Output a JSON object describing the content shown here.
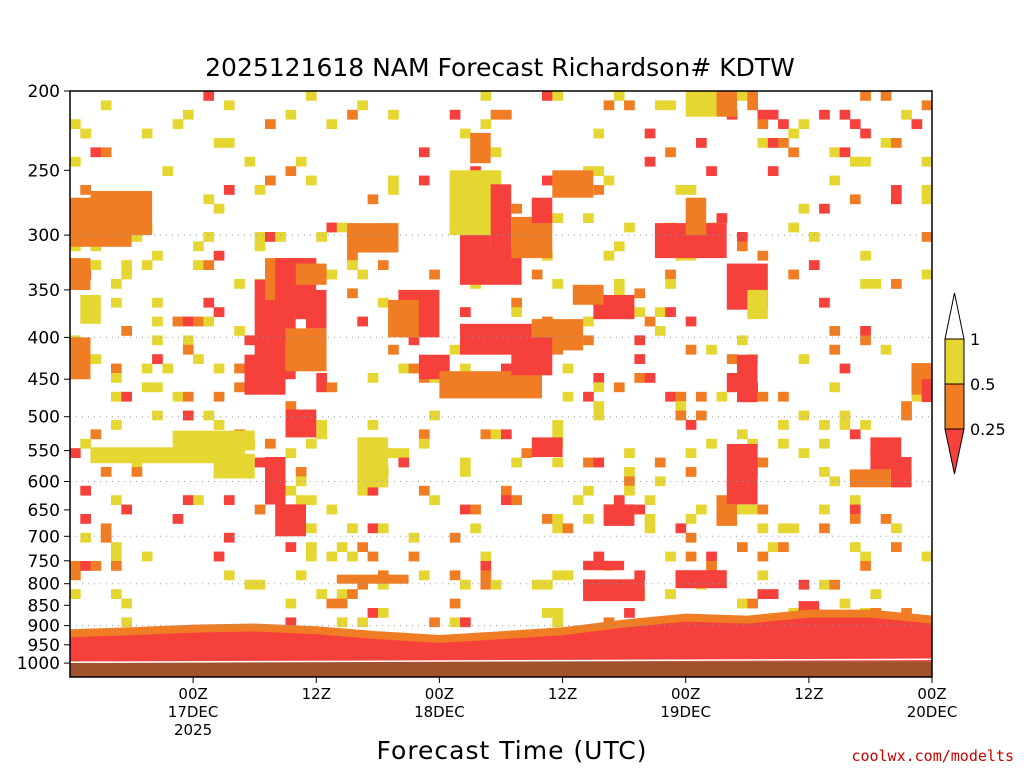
{
  "chart_data": {
    "type": "heatmap",
    "title": "2025121618 NAM Forecast Richardson# KDTW",
    "xlabel": "Forecast Time (UTC)",
    "ylabel": "",
    "credit": "coolwx.com/modelts",
    "x_unit": "forecast hour",
    "x_range": [
      -6,
      78
    ],
    "y_unit": "hPa",
    "y_range": [
      1040,
      200
    ],
    "y_scale": "log-pressure",
    "y_ticks": [
      200,
      250,
      300,
      350,
      400,
      450,
      500,
      550,
      600,
      650,
      700,
      750,
      800,
      850,
      900,
      950,
      1000
    ],
    "y_tick_labels": [
      "200",
      "250",
      "300",
      "350",
      "400",
      "450",
      "500",
      "550",
      "600",
      "650",
      "700",
      "750",
      "800",
      "850",
      "900",
      "950",
      "1000"
    ],
    "y_gridlines": [
      300,
      400,
      500,
      600,
      700,
      800,
      900
    ],
    "x_ticks": [
      {
        "hour": 6,
        "lines": [
          "00Z",
          "17DEC",
          "2025"
        ]
      },
      {
        "hour": 18,
        "lines": [
          "12Z"
        ]
      },
      {
        "hour": 30,
        "lines": [
          "00Z",
          "18DEC"
        ]
      },
      {
        "hour": 42,
        "lines": [
          "12Z"
        ]
      },
      {
        "hour": 54,
        "lines": [
          "00Z",
          "19DEC"
        ]
      },
      {
        "hour": 66,
        "lines": [
          "12Z"
        ]
      },
      {
        "hour": 78,
        "lines": [
          "00Z",
          "20DEC"
        ]
      }
    ],
    "legend": {
      "placement": "right",
      "levels": [
        "1",
        "0.5",
        "0.25"
      ],
      "bins": [
        {
          "label": "Ri > 1",
          "color": "#ffffff"
        },
        {
          "label": "0.5–1",
          "color": "#e6d632"
        },
        {
          "label": "0.25–0.5",
          "color": "#f07d23"
        },
        {
          "label": "< 0.25",
          "color": "#f5403c"
        }
      ]
    },
    "colors": {
      "yellow": "#e6d632",
      "orange": "#f07d23",
      "red": "#f5403c",
      "ground": "#a0522d",
      "background": "#ffffff"
    },
    "surface_layer": {
      "label": "below-ground",
      "from_hPa": 995,
      "to_hPa": 1040,
      "color": "#a0522d"
    },
    "boundary_layer": {
      "description": "Ri < 0.25 near surface throughout",
      "top_hPa_by_hour": [
        [
          -6,
          930
        ],
        [
          0,
          925
        ],
        [
          6,
          918
        ],
        [
          12,
          915
        ],
        [
          18,
          922
        ],
        [
          24,
          935
        ],
        [
          30,
          945
        ],
        [
          36,
          935
        ],
        [
          42,
          925
        ],
        [
          48,
          905
        ],
        [
          54,
          890
        ],
        [
          60,
          895
        ],
        [
          66,
          880
        ],
        [
          72,
          880
        ],
        [
          78,
          895
        ],
        [
          84,
          925
        ]
      ]
    },
    "regions": [
      {
        "h0": -6,
        "h1": 0,
        "p0": 270,
        "p1": 310,
        "cls": "o"
      },
      {
        "h0": -4,
        "h1": 2,
        "p0": 265,
        "p1": 300,
        "cls": "o"
      },
      {
        "h0": -6,
        "h1": -4,
        "p0": 320,
        "p1": 350,
        "cls": "o"
      },
      {
        "h0": -6,
        "h1": -4,
        "p0": 400,
        "p1": 450,
        "cls": "o"
      },
      {
        "h0": -5,
        "h1": -3,
        "p0": 355,
        "p1": 385,
        "cls": "y"
      },
      {
        "h0": -4,
        "h1": 10,
        "p0": 545,
        "p1": 570,
        "cls": "y"
      },
      {
        "h0": 4,
        "h1": 12,
        "p0": 520,
        "p1": 550,
        "cls": "y"
      },
      {
        "h0": 8,
        "h1": 12,
        "p0": 555,
        "p1": 595,
        "cls": "y"
      },
      {
        "h0": 11,
        "h1": 15,
        "p0": 420,
        "p1": 470,
        "cls": "r"
      },
      {
        "h0": 12,
        "h1": 16,
        "p0": 340,
        "p1": 450,
        "cls": "r"
      },
      {
        "h0": 13,
        "h1": 17,
        "p0": 320,
        "p1": 360,
        "cls": "o"
      },
      {
        "h0": 14,
        "h1": 18,
        "p0": 320,
        "p1": 380,
        "cls": "r"
      },
      {
        "h0": 15,
        "h1": 19,
        "p0": 390,
        "p1": 440,
        "cls": "o"
      },
      {
        "h0": 16,
        "h1": 19,
        "p0": 325,
        "p1": 345,
        "cls": "o"
      },
      {
        "h0": 17,
        "h1": 19,
        "p0": 350,
        "p1": 390,
        "cls": "r"
      },
      {
        "h0": 15,
        "h1": 18,
        "p0": 490,
        "p1": 530,
        "cls": "r"
      },
      {
        "h0": 13,
        "h1": 15,
        "p0": 560,
        "p1": 640,
        "cls": "r"
      },
      {
        "h0": 14,
        "h1": 17,
        "p0": 640,
        "p1": 700,
        "cls": "r"
      },
      {
        "h0": 21,
        "h1": 26,
        "p0": 290,
        "p1": 315,
        "cls": "o"
      },
      {
        "h0": 20,
        "h1": 27,
        "p0": 780,
        "p1": 800,
        "cls": "o"
      },
      {
        "h0": 22,
        "h1": 25,
        "p0": 530,
        "p1": 610,
        "cls": "y"
      },
      {
        "h0": 26,
        "h1": 30,
        "p0": 350,
        "p1": 400,
        "cls": "r"
      },
      {
        "h0": 25,
        "h1": 28,
        "p0": 360,
        "p1": 400,
        "cls": "o"
      },
      {
        "h0": 28,
        "h1": 31,
        "p0": 420,
        "p1": 450,
        "cls": "r"
      },
      {
        "h0": 30,
        "h1": 40,
        "p0": 440,
        "p1": 475,
        "cls": "o"
      },
      {
        "h0": 31,
        "h1": 36,
        "p0": 250,
        "p1": 300,
        "cls": "y"
      },
      {
        "h0": 32,
        "h1": 35,
        "p0": 300,
        "p1": 340,
        "cls": "r"
      },
      {
        "h0": 32,
        "h1": 38,
        "p0": 310,
        "p1": 345,
        "cls": "r"
      },
      {
        "h0": 33,
        "h1": 35,
        "p0": 225,
        "p1": 245,
        "cls": "o"
      },
      {
        "h0": 32,
        "h1": 39,
        "p0": 385,
        "p1": 420,
        "cls": "r"
      },
      {
        "h0": 35,
        "h1": 37,
        "p0": 260,
        "p1": 320,
        "cls": "r"
      },
      {
        "h0": 37,
        "h1": 41,
        "p0": 285,
        "p1": 320,
        "cls": "o"
      },
      {
        "h0": 39,
        "h1": 44,
        "p0": 380,
        "p1": 415,
        "cls": "o"
      },
      {
        "h0": 37,
        "h1": 41,
        "p0": 400,
        "p1": 445,
        "cls": "r"
      },
      {
        "h0": 39,
        "h1": 42,
        "p0": 530,
        "p1": 560,
        "cls": "r"
      },
      {
        "h0": 41,
        "h1": 45,
        "p0": 250,
        "p1": 270,
        "cls": "o"
      },
      {
        "h0": 39,
        "h1": 41,
        "p0": 270,
        "p1": 290,
        "cls": "r"
      },
      {
        "h0": 45,
        "h1": 49,
        "p0": 355,
        "p1": 380,
        "cls": "r"
      },
      {
        "h0": 43,
        "h1": 46,
        "p0": 345,
        "p1": 365,
        "cls": "o"
      },
      {
        "h0": 44,
        "h1": 48,
        "p0": 750,
        "p1": 770,
        "cls": "r"
      },
      {
        "h0": 44,
        "h1": 50,
        "p0": 790,
        "p1": 840,
        "cls": "r"
      },
      {
        "h0": 46,
        "h1": 49,
        "p0": 640,
        "p1": 680,
        "cls": "r"
      },
      {
        "h0": 51,
        "h1": 58,
        "p0": 290,
        "p1": 320,
        "cls": "r"
      },
      {
        "h0": 54,
        "h1": 56,
        "p0": 270,
        "p1": 300,
        "cls": "o"
      },
      {
        "h0": 53,
        "h1": 58,
        "p0": 770,
        "p1": 810,
        "cls": "r"
      },
      {
        "h0": 54,
        "h1": 57,
        "p0": 200,
        "p1": 215,
        "cls": "y"
      },
      {
        "h0": 57,
        "h1": 59,
        "p0": 200,
        "p1": 215,
        "cls": "o"
      },
      {
        "h0": 58,
        "h1": 62,
        "p0": 325,
        "p1": 370,
        "cls": "r"
      },
      {
        "h0": 59,
        "h1": 61,
        "p0": 420,
        "p1": 480,
        "cls": "r"
      },
      {
        "h0": 58,
        "h1": 61,
        "p0": 540,
        "p1": 640,
        "cls": "r"
      },
      {
        "h0": 57,
        "h1": 59,
        "p0": 640,
        "p1": 680,
        "cls": "o"
      },
      {
        "h0": 59,
        "h1": 61,
        "p0": 560,
        "p1": 600,
        "cls": "r"
      },
      {
        "h0": 60,
        "h1": 62,
        "p0": 350,
        "p1": 380,
        "cls": "y"
      },
      {
        "h0": 76,
        "h1": 80,
        "p0": 430,
        "p1": 470,
        "cls": "o"
      },
      {
        "h0": 77,
        "h1": 79,
        "p0": 450,
        "p1": 480,
        "cls": "r"
      },
      {
        "h0": 80,
        "h1": 84,
        "p0": 380,
        "p1": 430,
        "cls": "o"
      },
      {
        "h0": 81,
        "h1": 83,
        "p0": 400,
        "p1": 430,
        "cls": "r"
      },
      {
        "h0": 79,
        "h1": 81,
        "p0": 290,
        "p1": 310,
        "cls": "r"
      },
      {
        "h0": 82,
        "h1": 84,
        "p0": 360,
        "p1": 390,
        "cls": "r"
      },
      {
        "h0": 70,
        "h1": 74,
        "p0": 580,
        "p1": 610,
        "cls": "o"
      },
      {
        "h0": 72,
        "h1": 75,
        "p0": 530,
        "p1": 580,
        "cls": "r"
      },
      {
        "h0": 74,
        "h1": 76,
        "p0": 560,
        "p1": 610,
        "cls": "r"
      },
      {
        "h0": 65,
        "h1": 67,
        "p0": 840,
        "p1": 870,
        "cls": "r"
      }
    ]
  }
}
